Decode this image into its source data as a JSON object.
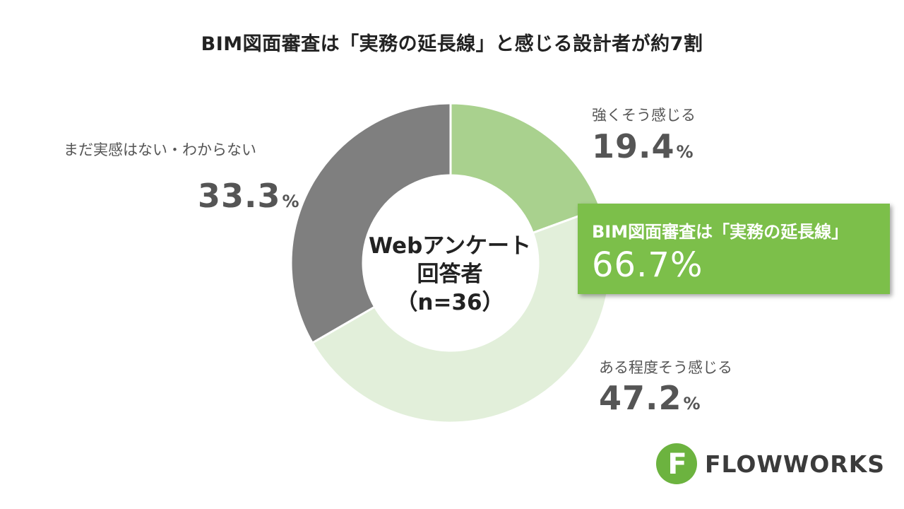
{
  "title": "BIM図面審査は「実務の延長線」と感じる設計者が約7割",
  "center_label": {
    "line1": "Webアンケート",
    "line2": "回答者",
    "line3": "（n=36）"
  },
  "callout": {
    "label": "BIM図面審査は「実務の延長線」",
    "value": "66.7%"
  },
  "unit": "%",
  "logo": {
    "text": "FLOWWORKS",
    "mark_letter": "F"
  },
  "chart_data": {
    "type": "pie",
    "variant": "donut",
    "categories": [
      "強くそう感じる",
      "ある程度そう感じる",
      "まだ実感はない・わからない"
    ],
    "values": [
      19.4,
      47.2,
      33.3
    ],
    "value_labels": [
      "19.4",
      "47.2",
      "33.3"
    ],
    "colors": [
      "#a9d18e",
      "#e2efda",
      "#7f7f7f"
    ],
    "start_angle_deg": 0,
    "direction": "clockwise"
  }
}
